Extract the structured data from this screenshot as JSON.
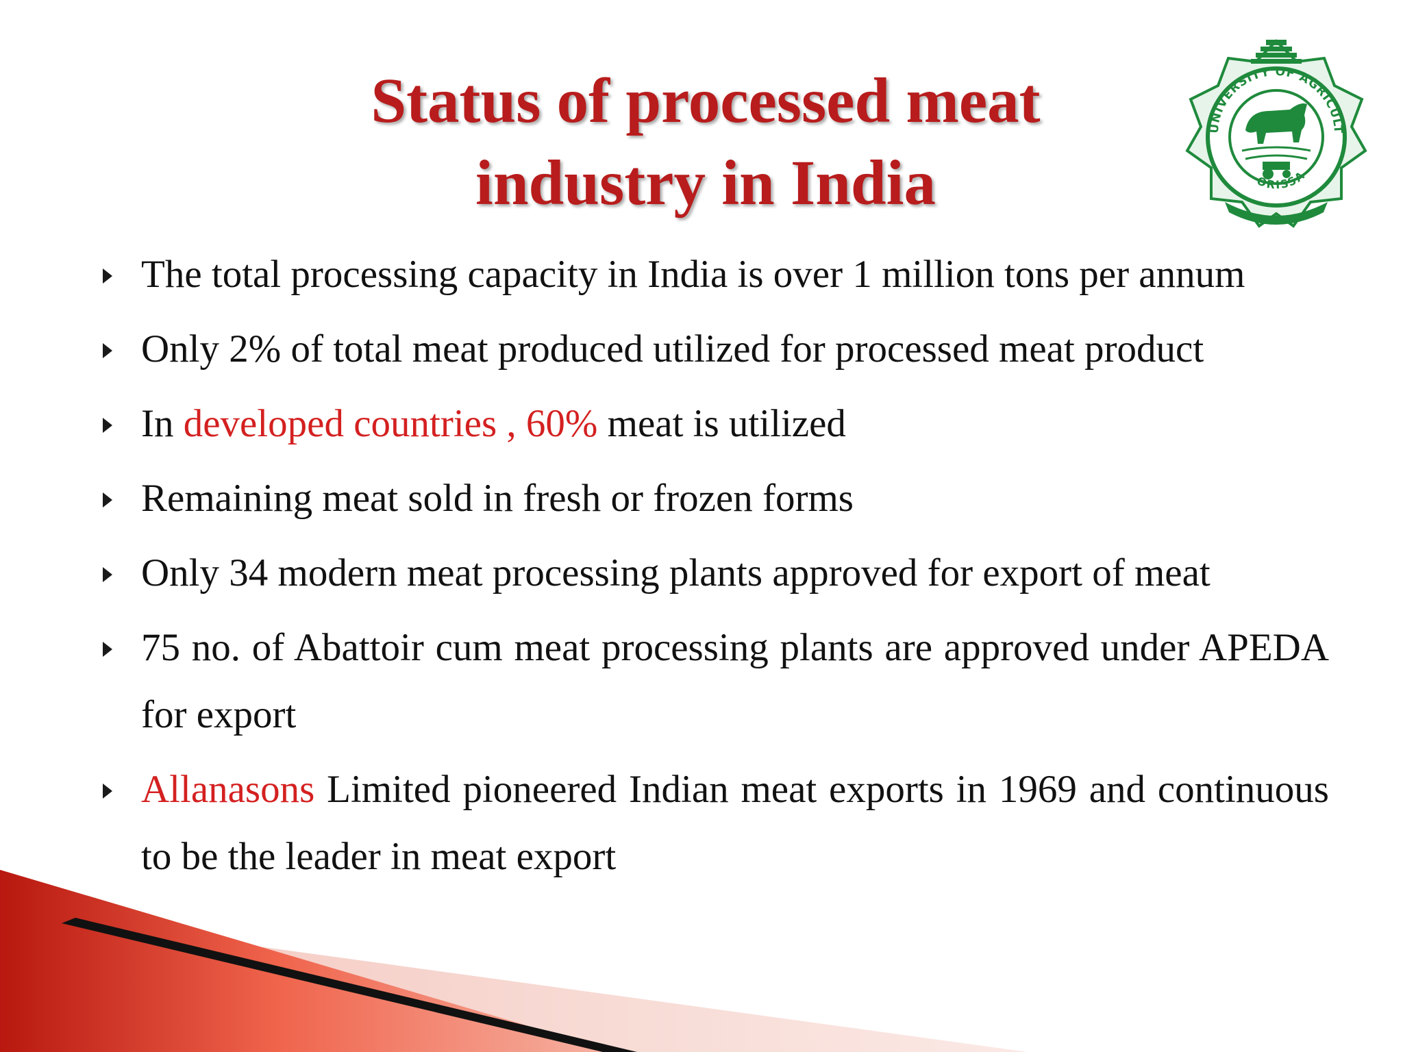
{
  "title": {
    "line1": "Status of processed meat",
    "line2": "industry in India"
  },
  "logo": {
    "icon": "university-seal-icon",
    "ring_text": "UNIVERSITY OF AGRICULTURE & TECHNOLOGY",
    "bottom_text": "ORISSA",
    "colors": {
      "primary": "#1f8a3c",
      "light": "#e7f4ea"
    }
  },
  "bullets": [
    {
      "text": "The total processing capacity in India is over 1 million tons per annum"
    },
    {
      "text": "Only 2% of total meat produced utilized for processed meat product"
    },
    {
      "prefix": "In ",
      "highlight": "developed countries ,  60%",
      "suffix": " meat is utilized"
    },
    {
      "text": "Remaining meat sold in fresh or frozen forms"
    },
    {
      "text": "Only 34 modern meat processing plants approved for export of meat"
    },
    {
      "text": "75 no. of Abattoir cum meat processing plants are approved under APEDA for export"
    },
    {
      "highlight": "Allanasons",
      "suffix": " Limited pioneered Indian meat exports in 1969 and continuous to be the leader in meat export"
    }
  ],
  "colors": {
    "title": "#b81c1c",
    "highlight": "#d42020",
    "body_text": "#111111",
    "decoration_red": "#e8432d"
  }
}
